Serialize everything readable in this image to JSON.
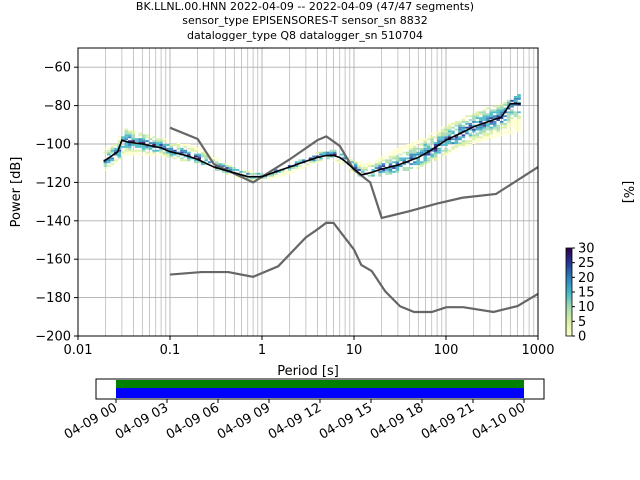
{
  "title_lines": [
    "BK.LLNL.00.HNN   2022-04-09 -- 2022-04-09  (47/47 segments)",
    "sensor_type EPISENSORES-T sensor_sn 8832",
    "datalogger_type Q8 datalogger_sn 510704"
  ],
  "chart_data": {
    "type": "heatmap",
    "xlabel": "Period [s]",
    "ylabel": "Power [dB]",
    "x_scale": "log",
    "xlim": [
      0.01,
      1000
    ],
    "ylim": [
      -200,
      -50
    ],
    "x_ticks": [
      {
        "value": 0.01,
        "label": "0.01"
      },
      {
        "value": 0.1,
        "label": "0.1"
      },
      {
        "value": 1,
        "label": "1"
      },
      {
        "value": 10,
        "label": "10"
      },
      {
        "value": 100,
        "label": "100"
      },
      {
        "value": 1000,
        "label": "1000"
      }
    ],
    "y_ticks": [
      {
        "value": -60,
        "label": "−60"
      },
      {
        "value": -80,
        "label": "−80"
      },
      {
        "value": -100,
        "label": "−100"
      },
      {
        "value": -120,
        "label": "−120"
      },
      {
        "value": -140,
        "label": "−140"
      },
      {
        "value": -160,
        "label": "−160"
      },
      {
        "value": -180,
        "label": "−180"
      },
      {
        "value": -200,
        "label": "−200"
      }
    ],
    "grid": true,
    "colorbar": {
      "label": "[%]",
      "min": 0,
      "max": 30,
      "ticks": [
        {
          "value": 0,
          "label": "0"
        },
        {
          "value": 5,
          "label": "5"
        },
        {
          "value": 10,
          "label": "10"
        },
        {
          "value": 15,
          "label": "15"
        },
        {
          "value": 20,
          "label": "20"
        },
        {
          "value": 25,
          "label": "25"
        },
        {
          "value": 30,
          "label": "30"
        }
      ],
      "colors": [
        "#ffffcc",
        "#d9f0a3",
        "#a1dab4",
        "#41b6c4",
        "#2c7fb8",
        "#253494",
        "#2d004b"
      ]
    },
    "mode_line": {
      "x": [
        0.019,
        0.022,
        0.027,
        0.03,
        0.035,
        0.05,
        0.08,
        0.1,
        0.15,
        0.2,
        0.3,
        0.5,
        0.7,
        1.0,
        1.5,
        2.0,
        3.0,
        4.0,
        5.0,
        6.0,
        7.0,
        8.0,
        10.0,
        12.0,
        15.0,
        20.0,
        30.0,
        50.0,
        70.0,
        100.0,
        150.0,
        200.0,
        300.0,
        400.0,
        500.0,
        650.0
      ],
      "y": [
        -109,
        -107,
        -104,
        -98,
        -99,
        -100,
        -102,
        -104,
        -106,
        -108,
        -112,
        -115,
        -117,
        -117,
        -114,
        -112,
        -109,
        -107,
        -106,
        -106,
        -107,
        -109,
        -113,
        -116,
        -115,
        -113,
        -111,
        -107,
        -103,
        -98,
        -94,
        -91,
        -88,
        -86,
        -79,
        -79
      ]
    },
    "noise_models": [
      {
        "x": [
          0.1,
          0.22,
          0.43,
          0.8,
          1.5,
          3.0,
          4.0,
          5.0,
          6.0,
          10.0,
          12.0,
          15.6,
          21.9,
          31.6,
          45.0,
          70.0,
          101.0,
          154.0,
          328.0,
          600.0,
          1000.0
        ],
        "y": [
          -168,
          -166.7,
          -166.7,
          -169.2,
          -163.7,
          -148.6,
          -144.5,
          -141.0,
          -141.1,
          -155.0,
          -163.0,
          -166.2,
          -176.8,
          -184.5,
          -187.5,
          -187.5,
          -185.0,
          -185.0,
          -187.5,
          -184.4,
          -178.0
        ]
      },
      {
        "x": [
          0.1,
          0.2,
          0.3,
          0.8,
          2.0,
          4.0,
          5.0,
          7.0,
          10.0,
          15.0,
          20.0,
          40.0,
          80.0,
          150.0,
          350.0,
          1000.0
        ],
        "y": [
          -91.5,
          -97.4,
          -110.5,
          -120.0,
          -108.0,
          -98.0,
          -96.0,
          -101.0,
          -113.5,
          -120.0,
          -138.5,
          -135.0,
          -131.0,
          -128.0,
          -126.0,
          -112.0
        ]
      }
    ],
    "density_bands": [
      {
        "x": [
          0.019,
          0.025,
          0.03,
          0.04,
          0.06,
          0.1,
          0.2,
          0.3,
          0.5,
          1.0,
          2.0,
          3.0,
          4.0,
          5.0,
          6.0,
          8.0,
          10.0,
          15.0,
          20.0,
          30.0,
          50.0,
          100.0,
          200.0,
          400.0,
          650.0
        ],
        "y_low": [
          -114,
          -110,
          -106,
          -106,
          -106,
          -108,
          -111,
          -114,
          -118,
          -120,
          -116,
          -112,
          -110,
          -109,
          -110,
          -112,
          -117,
          -118,
          -117,
          -115,
          -113,
          -106,
          -100,
          -96,
          -94
        ],
        "y_high": [
          -103,
          -100,
          -92,
          -94,
          -96,
          -99,
          -102,
          -107,
          -113,
          -116,
          -111,
          -107,
          -104,
          -103,
          -104,
          -107,
          -110,
          -110,
          -106,
          -102,
          -98,
          -90,
          -84,
          -79,
          -74
        ]
      }
    ],
    "time_axis": {
      "tick_labels": [
        "04-09 00",
        "04-09 03",
        "04-09 06",
        "04-09 09",
        "04-09 12",
        "04-09 15",
        "04-09 18",
        "04-09 21",
        "04-10 00"
      ],
      "start_hour": 0,
      "end_hour": 24,
      "coverage_colors": [
        "#008000",
        "#0000ff"
      ]
    }
  }
}
